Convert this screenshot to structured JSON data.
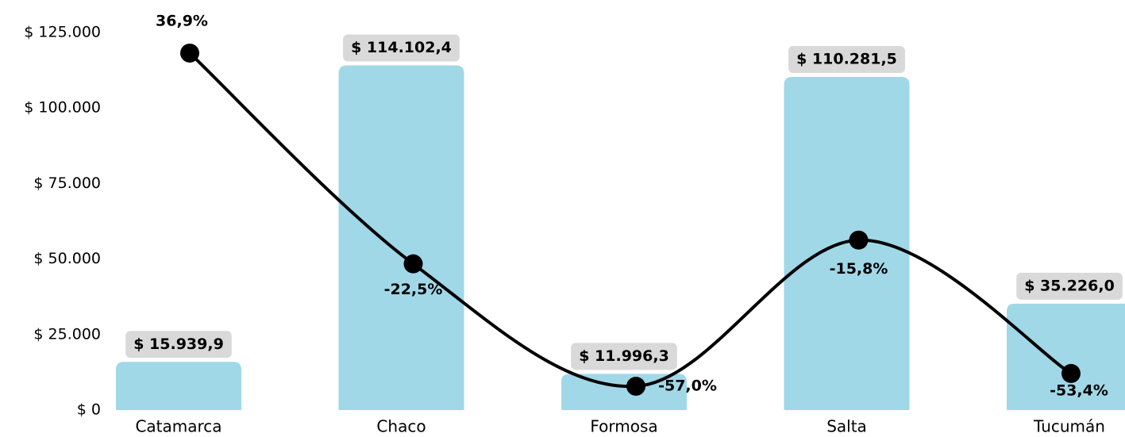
{
  "chart_data": {
    "type": "bar",
    "categories": [
      "Catamarca",
      "Chaco",
      "Formosa",
      "Salta",
      "Tucumán"
    ],
    "series": [
      {
        "type": "bar",
        "color": "#a0d8e8",
        "values": [
          15939.9,
          114102.4,
          11996.3,
          110281.5,
          35226.0
        ],
        "value_labels": [
          "$ 15.939,9",
          "$ 114.102,4",
          "$ 11.996,3",
          "$ 110.281,5",
          "$ 35.226,0"
        ]
      },
      {
        "type": "line",
        "axis": "y2",
        "color": "#000000",
        "values": [
          36.9,
          -22.5,
          -57.0,
          -15.8,
          -53.4
        ],
        "value_labels": [
          "36,9%",
          "-22,5%",
          "-57,0%",
          "-15,8%",
          "-53,4%"
        ]
      }
    ],
    "ylim": [
      0,
      125000
    ],
    "yticks": [
      {
        "value": 0,
        "label": "$ 0"
      },
      {
        "value": 25000,
        "label": "$ 25.000"
      },
      {
        "value": 50000,
        "label": "$ 50.000"
      },
      {
        "value": 75000,
        "label": "$ 75.000"
      },
      {
        "value": 100000,
        "label": "$ 100.000"
      },
      {
        "value": 125000,
        "label": "$ 125.000"
      }
    ],
    "y2lim": [
      -63.7,
      42.7
    ]
  }
}
